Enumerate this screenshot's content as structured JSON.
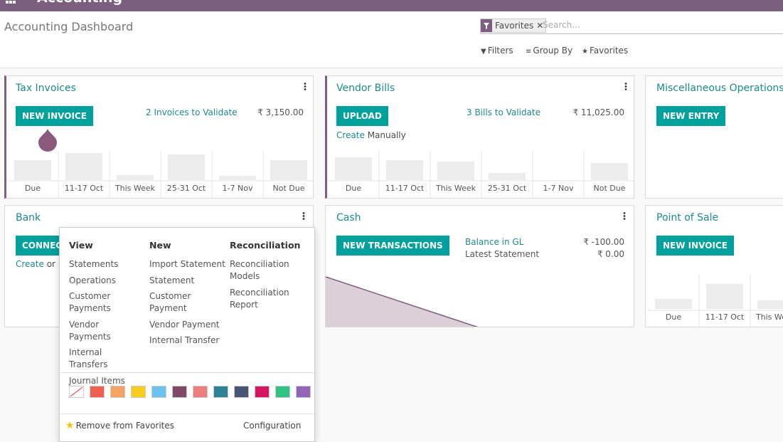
{
  "navbar": {
    "app": "Accounting"
  },
  "control_panel": {
    "breadcrumb": "Accounting Dashboard",
    "facet": "Favorites",
    "search_placeholder": "Search...",
    "buttons": [
      "Filters",
      "Group By",
      "Favorites"
    ]
  },
  "cards": [
    {
      "title": "Tax Invoices",
      "button": "NEW INVOICE",
      "link": "2 Invoices to Validate",
      "amount": "₹ 3,150.00",
      "graph": {
        "categories": [
          "Due",
          "11-17 Oct",
          "This Week",
          "25-31 Oct",
          "1-7 Nov",
          "Not Due"
        ],
        "values": [
          28,
          38,
          7,
          36,
          6,
          28
        ]
      }
    },
    {
      "title": "Vendor Bills",
      "button": "UPLOAD",
      "link": "3 Bills to Validate",
      "amount": "₹ 11,025.00",
      "create": "Create",
      "create_rest": "Manually",
      "graph": {
        "categories": [
          "Due",
          "11-17 Oct",
          "This Week",
          "25-31 Oct",
          "1-7 Nov",
          "Not Due"
        ],
        "values": [
          32,
          28,
          26,
          10,
          0,
          24
        ]
      }
    },
    {
      "title": "Miscellaneous Operations",
      "button": "NEW ENTRY"
    },
    {
      "title": "Bank",
      "button": "CONNECT",
      "create": "Create",
      "create_rest": "or Import"
    },
    {
      "title": "Cash",
      "button": "NEW TRANSACTIONS",
      "rows": [
        {
          "label": "Balance in GL",
          "amount": "₹ -100.00"
        },
        {
          "label": "Latest Statement",
          "amount": "₹ 0.00"
        }
      ]
    },
    {
      "title": "Point of Sale",
      "button": "NEW INVOICE",
      "graph": {
        "categories": [
          "Due",
          "11-17 Oct",
          "This Week"
        ],
        "values": [
          14,
          35,
          12
        ]
      }
    }
  ],
  "dropdown": {
    "columns": [
      {
        "heading": "View",
        "items": [
          "Statements",
          "Operations",
          "Customer Payments",
          "Vendor Payments",
          "Internal Transfers",
          "Journal Items"
        ]
      },
      {
        "heading": "New",
        "items": [
          "Import Statement",
          "Statement",
          "Customer Payment",
          "Vendor Payment",
          "Internal Transfer"
        ]
      },
      {
        "heading": "Reconciliation",
        "items": [
          "Reconciliation Models",
          "Reconciliation Report"
        ]
      }
    ],
    "colors": [
      "#ffffff",
      "#f06050",
      "#f4a460",
      "#f7cd1f",
      "#6cc1ed",
      "#814968",
      "#eb7e7f",
      "#2c8397",
      "#475577",
      "#d6145f",
      "#30c381",
      "#9365b8"
    ],
    "remove": "Remove from Favorites",
    "configuration": "Configuration"
  }
}
